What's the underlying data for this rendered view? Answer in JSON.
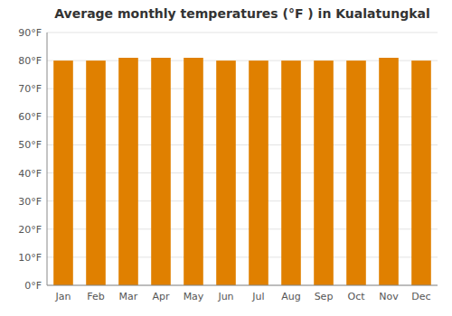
{
  "chart_data": {
    "type": "bar",
    "title": "Average monthly temperatures (°F ) in Kualatungkal",
    "categories": [
      "Jan",
      "Feb",
      "Mar",
      "Apr",
      "May",
      "Jun",
      "Jul",
      "Aug",
      "Sep",
      "Oct",
      "Nov",
      "Dec"
    ],
    "values": [
      80,
      80,
      81,
      81,
      81,
      80,
      80,
      80,
      80,
      80,
      81,
      80
    ],
    "color": "#E08000",
    "ylim": [
      0,
      90
    ],
    "yticks": [
      {
        "value": 0,
        "label": "0°F"
      },
      {
        "value": 10,
        "label": "10°F"
      },
      {
        "value": 20,
        "label": "20°F"
      },
      {
        "value": 30,
        "label": "30°F"
      },
      {
        "value": 40,
        "label": "40°F"
      },
      {
        "value": 50,
        "label": "50°F"
      },
      {
        "value": 60,
        "label": "60°F"
      },
      {
        "value": 70,
        "label": "70°F"
      },
      {
        "value": 80,
        "label": "80°F"
      },
      {
        "value": 90,
        "label": "90°F"
      }
    ],
    "grid": true
  }
}
